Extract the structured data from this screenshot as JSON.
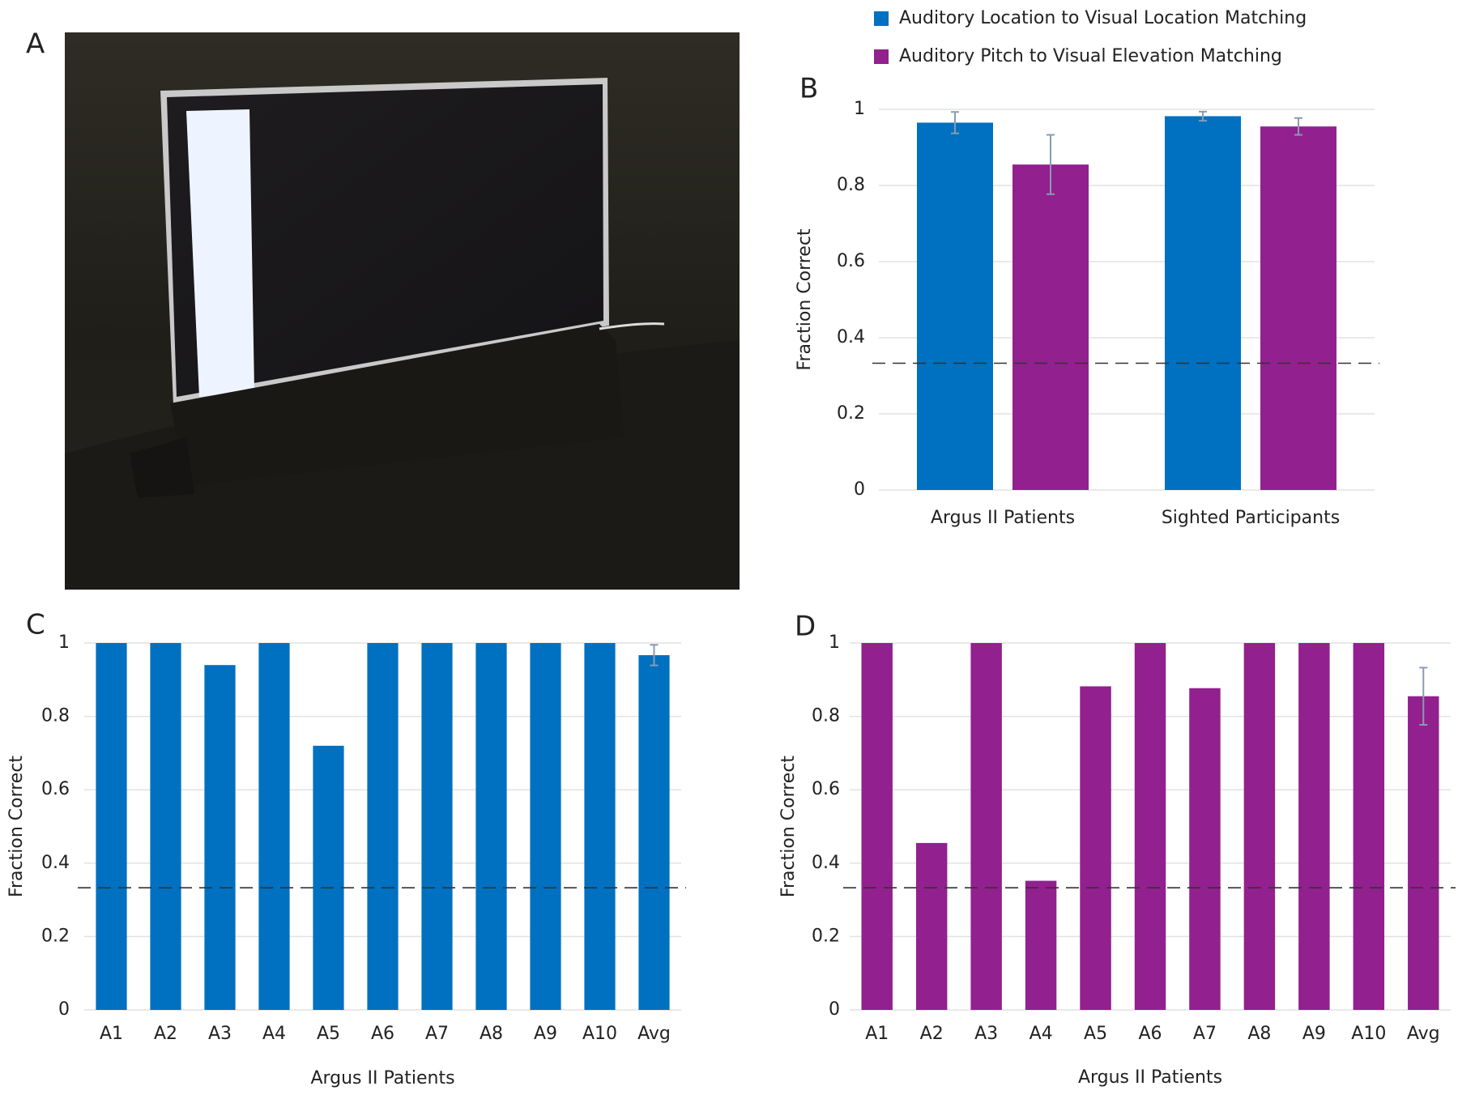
{
  "photo_panel": {
    "label": "A"
  },
  "chart_data": [
    {
      "type": "bar",
      "panel_label": "B",
      "categories": [
        "Argus II Patients",
        "Sighted Participants"
      ],
      "series": [
        {
          "name": "Auditory Location to Visual Location Matching",
          "color": "#0070c0",
          "values": [
            0.965,
            0.982
          ],
          "errors": [
            0.028,
            0.012
          ]
        },
        {
          "name": "Auditory Pitch to Visual Elevation Matching",
          "color": "#92208f",
          "values": [
            0.855,
            0.955
          ],
          "errors": [
            0.078,
            0.022
          ]
        }
      ],
      "y_label": "Fraction Correct",
      "ylim": [
        0,
        1
      ],
      "yticks": [
        0,
        0.2,
        0.4,
        0.6,
        0.8,
        1
      ],
      "grid": true,
      "reference_line": 0.333
    },
    {
      "type": "bar",
      "panel_label": "C",
      "categories": [
        "A1",
        "A2",
        "A3",
        "A4",
        "A5",
        "A6",
        "A7",
        "A8",
        "A9",
        "A10",
        "Avg"
      ],
      "series": [
        {
          "color": "#0070c0",
          "values": [
            1,
            1,
            0.94,
            1,
            0.72,
            1,
            1,
            1,
            1,
            1,
            0.967
          ],
          "errors": [
            null,
            null,
            null,
            null,
            null,
            null,
            null,
            null,
            null,
            null,
            0.028
          ]
        }
      ],
      "x_label": "Argus II Patients",
      "y_label": "Fraction Correct",
      "ylim": [
        0,
        1
      ],
      "yticks": [
        0,
        0.2,
        0.4,
        0.6,
        0.8,
        1
      ],
      "grid": true,
      "reference_line": 0.333
    },
    {
      "type": "bar",
      "panel_label": "D",
      "categories": [
        "A1",
        "A2",
        "A3",
        "A4",
        "A5",
        "A6",
        "A7",
        "A8",
        "A9",
        "A10",
        "Avg"
      ],
      "series": [
        {
          "color": "#92208f",
          "values": [
            1,
            0.455,
            1,
            0.352,
            0.882,
            1,
            0.877,
            1,
            1,
            1,
            0.855
          ],
          "errors": [
            null,
            null,
            null,
            null,
            null,
            null,
            null,
            null,
            null,
            null,
            0.078
          ]
        }
      ],
      "x_label": "Argus II Patients",
      "y_label": "Fraction Correct",
      "ylim": [
        0,
        1
      ],
      "yticks": [
        0,
        0.2,
        0.4,
        0.6,
        0.8,
        1
      ],
      "grid": true,
      "reference_line": 0.333
    }
  ]
}
